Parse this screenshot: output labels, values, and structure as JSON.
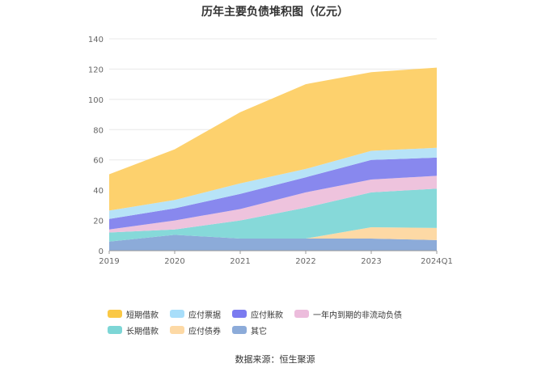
{
  "chart_data": {
    "type": "area",
    "stacked": true,
    "title": "历年主要负债堆积图（亿元）",
    "categories": [
      "2019",
      "2020",
      "2021",
      "2022",
      "2023",
      "2024Q1"
    ],
    "ylim": [
      0,
      140
    ],
    "yticks": [
      0,
      20,
      40,
      60,
      80,
      100,
      120,
      140
    ],
    "grid": true,
    "legend_position": "bottom",
    "series": [
      {
        "name": "其它",
        "color": "#8cabd9",
        "values": [
          6,
          10.5,
          8,
          8,
          8,
          7
        ]
      },
      {
        "name": "应付债券",
        "color": "#fdd9a5",
        "values": [
          0,
          0,
          0,
          0,
          7.5,
          8
        ]
      },
      {
        "name": "长期借款",
        "color": "#86d9d9",
        "values": [
          6,
          3.5,
          12,
          20.5,
          23,
          26
        ]
      },
      {
        "name": "一年内到期的非流动负债",
        "color": "#eec3dd",
        "values": [
          2,
          6,
          7.5,
          10,
          8.5,
          8.5
        ]
      },
      {
        "name": "应付账款",
        "color": "#8888ee",
        "values": [
          7,
          8,
          10,
          10,
          13,
          12
        ]
      },
      {
        "name": "应付票据",
        "color": "#b7e3f7",
        "values": [
          5.5,
          5.5,
          7,
          5.5,
          6,
          6.5
        ]
      },
      {
        "name": "短期借款",
        "color": "#fdd16d",
        "values": [
          24,
          33.5,
          47,
          56,
          52,
          53
        ]
      }
    ]
  },
  "legend": [
    {
      "label": "短期借款",
      "color": "#fac845"
    },
    {
      "label": "应付票据",
      "color": "#a8defa"
    },
    {
      "label": "应付账款",
      "color": "#7b7bf0"
    },
    {
      "label": "一年内到期的非流动负债",
      "color": "#ecbcdc"
    },
    {
      "label": "长期借款",
      "color": "#7dd6d6"
    },
    {
      "label": "应付债券",
      "color": "#fdd9a5"
    },
    {
      "label": "其它",
      "color": "#8cabd9"
    }
  ],
  "source": "数据来源：恒生聚源"
}
